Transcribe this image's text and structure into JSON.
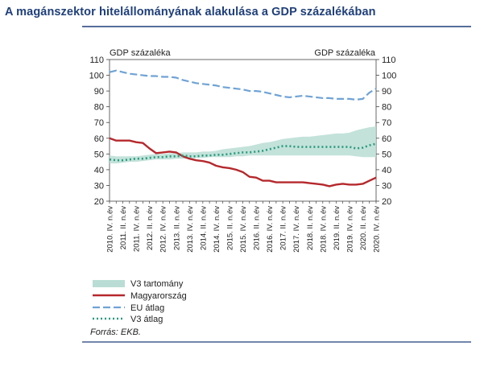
{
  "title": "A magánszektor hitelállományának alakulása a GDP százalékában",
  "colors": {
    "title": "#1f3f7a",
    "band": "#b9ddd4",
    "hungary": "#b5282c",
    "eu": "#6fa3d6",
    "v3": "#2a9a7c",
    "frame": "#1f3f7a"
  },
  "chart_data": {
    "type": "line",
    "y_unit_left": "GDP százaléka",
    "y_unit_right": "GDP százaléka",
    "ylim": [
      20,
      110
    ],
    "yticks": [
      20,
      30,
      40,
      50,
      60,
      70,
      80,
      90,
      100,
      110
    ],
    "x_tick_labels": [
      "2010. IV. n.év",
      "2011. II. n.év",
      "2011. IV. n.év",
      "2012. II. n.év",
      "2012. IV. n.év",
      "2013. II. n.év",
      "2013. IV. n.év",
      "2014. II. n.év",
      "2014. IV. n.év",
      "2015. II. n.év",
      "2015. IV. n.év",
      "2016. II. n.év",
      "2016. IV. n.év",
      "2017. II. n.év",
      "2017. IV. n.év",
      "2018. II. n.év",
      "2018. IV. n.év",
      "2019. II. n.év",
      "2019. IV. n.év",
      "2020. II. n.év",
      "2020. IV. n.év"
    ],
    "x_quarters": [
      "2010 Q4",
      "2011 Q1",
      "2011 Q2",
      "2011 Q3",
      "2011 Q4",
      "2012 Q1",
      "2012 Q2",
      "2012 Q3",
      "2012 Q4",
      "2013 Q1",
      "2013 Q2",
      "2013 Q3",
      "2013 Q4",
      "2014 Q1",
      "2014 Q2",
      "2014 Q3",
      "2014 Q4",
      "2015 Q1",
      "2015 Q2",
      "2015 Q3",
      "2015 Q4",
      "2016 Q1",
      "2016 Q2",
      "2016 Q3",
      "2016 Q4",
      "2017 Q1",
      "2017 Q2",
      "2017 Q3",
      "2017 Q4",
      "2018 Q1",
      "2018 Q2",
      "2018 Q3",
      "2018 Q4",
      "2019 Q1",
      "2019 Q2",
      "2019 Q3",
      "2019 Q4",
      "2020 Q1",
      "2020 Q2",
      "2020 Q3",
      "2020 Q4"
    ],
    "band": {
      "name": "V3 tartomány",
      "low": [
        44,
        44,
        44.5,
        45,
        45,
        45.5,
        46,
        46.5,
        46.5,
        46.5,
        47,
        47,
        47,
        47.5,
        47.5,
        48,
        48,
        48,
        48,
        48.5,
        48.5,
        49,
        49,
        49,
        49,
        49,
        49,
        49,
        49,
        49,
        49,
        49,
        49,
        49,
        49,
        49,
        49,
        48.5,
        48,
        48,
        48
      ],
      "high": [
        49,
        48.5,
        48.5,
        48.5,
        48.5,
        49,
        49.5,
        50,
        50,
        50.5,
        50.5,
        51,
        51,
        51,
        51.5,
        51.5,
        52,
        53,
        53.5,
        54,
        54.5,
        55,
        56,
        57,
        57.5,
        58.5,
        59.5,
        60,
        60.5,
        61,
        61,
        61.5,
        62,
        62.5,
        63,
        63,
        63.5,
        65,
        66,
        67,
        67.5
      ]
    },
    "series": [
      {
        "name": "Magyarország",
        "values": [
          60,
          58.5,
          58.5,
          58.5,
          57.5,
          57,
          53.5,
          50.5,
          51,
          51.5,
          51,
          48.5,
          47,
          46,
          45.5,
          44.5,
          42.5,
          41.5,
          41,
          40,
          38.5,
          35.5,
          35,
          33,
          33,
          32,
          32,
          32,
          32,
          32,
          31.5,
          31,
          30.5,
          29.5,
          30.5,
          31,
          30.5,
          30.5,
          31,
          33,
          35
        ]
      },
      {
        "name": "EU átlag",
        "values": [
          102,
          103,
          102,
          101,
          100.5,
          100,
          99.5,
          99.5,
          99,
          99,
          98.5,
          97,
          96,
          95,
          94.5,
          94,
          93.5,
          92.5,
          92,
          91.5,
          91,
          90,
          90,
          89.5,
          88.5,
          87.5,
          86.5,
          86,
          86.5,
          87,
          86.5,
          86,
          85.5,
          85.5,
          85,
          85,
          85,
          84.5,
          85,
          89,
          91.5
        ]
      },
      {
        "name": "V3 átlag",
        "values": [
          46.5,
          46,
          46,
          46.5,
          47,
          47,
          47.5,
          48,
          48,
          48.5,
          48.5,
          49,
          48.5,
          48.5,
          49,
          49,
          49.5,
          49.5,
          50,
          50.5,
          51,
          51,
          51.5,
          52,
          53,
          54,
          55,
          55,
          54.5,
          54.5,
          54.5,
          54.5,
          54.5,
          54.5,
          54.5,
          54.5,
          54.5,
          53.5,
          54,
          55.5,
          56.5
        ]
      }
    ],
    "legend": [
      "V3 tartomány",
      "Magyarország",
      "EU átlag",
      "V3 átlag"
    ],
    "legend_position": "bottom-left",
    "grid": false
  },
  "source": "Forrás: EKB."
}
